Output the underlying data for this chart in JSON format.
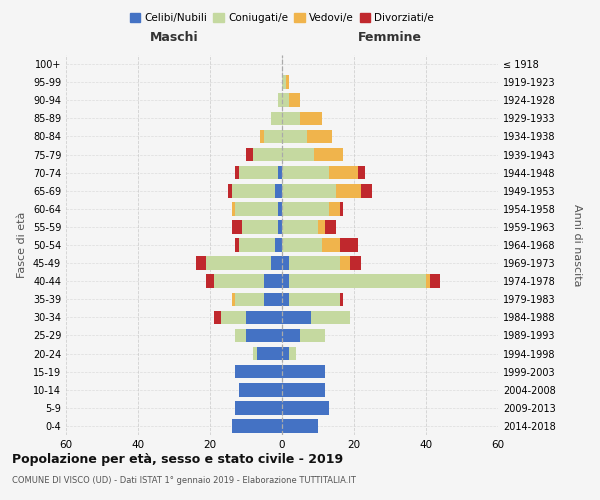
{
  "age_groups": [
    "0-4",
    "5-9",
    "10-14",
    "15-19",
    "20-24",
    "25-29",
    "30-34",
    "35-39",
    "40-44",
    "45-49",
    "50-54",
    "55-59",
    "60-64",
    "65-69",
    "70-74",
    "75-79",
    "80-84",
    "85-89",
    "90-94",
    "95-99",
    "100+"
  ],
  "birth_years": [
    "2014-2018",
    "2009-2013",
    "2004-2008",
    "1999-2003",
    "1994-1998",
    "1989-1993",
    "1984-1988",
    "1979-1983",
    "1974-1978",
    "1969-1973",
    "1964-1968",
    "1959-1963",
    "1954-1958",
    "1949-1953",
    "1944-1948",
    "1939-1943",
    "1934-1938",
    "1929-1933",
    "1924-1928",
    "1919-1923",
    "≤ 1918"
  ],
  "male": {
    "celibi": [
      14,
      13,
      12,
      13,
      7,
      10,
      10,
      5,
      5,
      3,
      2,
      1,
      1,
      2,
      1,
      0,
      0,
      0,
      0,
      0,
      0
    ],
    "coniugati": [
      0,
      0,
      0,
      0,
      1,
      3,
      7,
      8,
      14,
      18,
      10,
      10,
      12,
      12,
      11,
      8,
      5,
      3,
      1,
      0,
      0
    ],
    "vedovi": [
      0,
      0,
      0,
      0,
      0,
      0,
      0,
      1,
      0,
      0,
      0,
      0,
      1,
      0,
      0,
      0,
      1,
      0,
      0,
      0,
      0
    ],
    "divorziati": [
      0,
      0,
      0,
      0,
      0,
      0,
      2,
      0,
      2,
      3,
      1,
      3,
      0,
      1,
      1,
      2,
      0,
      0,
      0,
      0,
      0
    ]
  },
  "female": {
    "nubili": [
      10,
      13,
      12,
      12,
      2,
      5,
      8,
      2,
      2,
      2,
      0,
      0,
      0,
      0,
      0,
      0,
      0,
      0,
      0,
      0,
      0
    ],
    "coniugate": [
      0,
      0,
      0,
      0,
      2,
      7,
      11,
      14,
      38,
      14,
      11,
      10,
      13,
      15,
      13,
      9,
      7,
      5,
      2,
      1,
      0
    ],
    "vedove": [
      0,
      0,
      0,
      0,
      0,
      0,
      0,
      0,
      1,
      3,
      5,
      2,
      3,
      7,
      8,
      8,
      7,
      6,
      3,
      1,
      0
    ],
    "divorziate": [
      0,
      0,
      0,
      0,
      0,
      0,
      0,
      1,
      3,
      3,
      5,
      3,
      1,
      3,
      2,
      0,
      0,
      0,
      0,
      0,
      0
    ]
  },
  "color_celibi": "#4472c4",
  "color_coniugati": "#c5d9a0",
  "color_vedovi": "#f0b44c",
  "color_divorziati": "#c0282d",
  "title": "Popolazione per età, sesso e stato civile - 2019",
  "subtitle": "COMUNE DI VISCO (UD) - Dati ISTAT 1° gennaio 2019 - Elaborazione TUTTITALIA.IT",
  "xlabel_left": "Maschi",
  "xlabel_right": "Femmine",
  "ylabel_left": "Fasce di età",
  "ylabel_right": "Anni di nascita",
  "xlim": 60,
  "background_color": "#f5f5f5",
  "grid_color": "#cccccc"
}
